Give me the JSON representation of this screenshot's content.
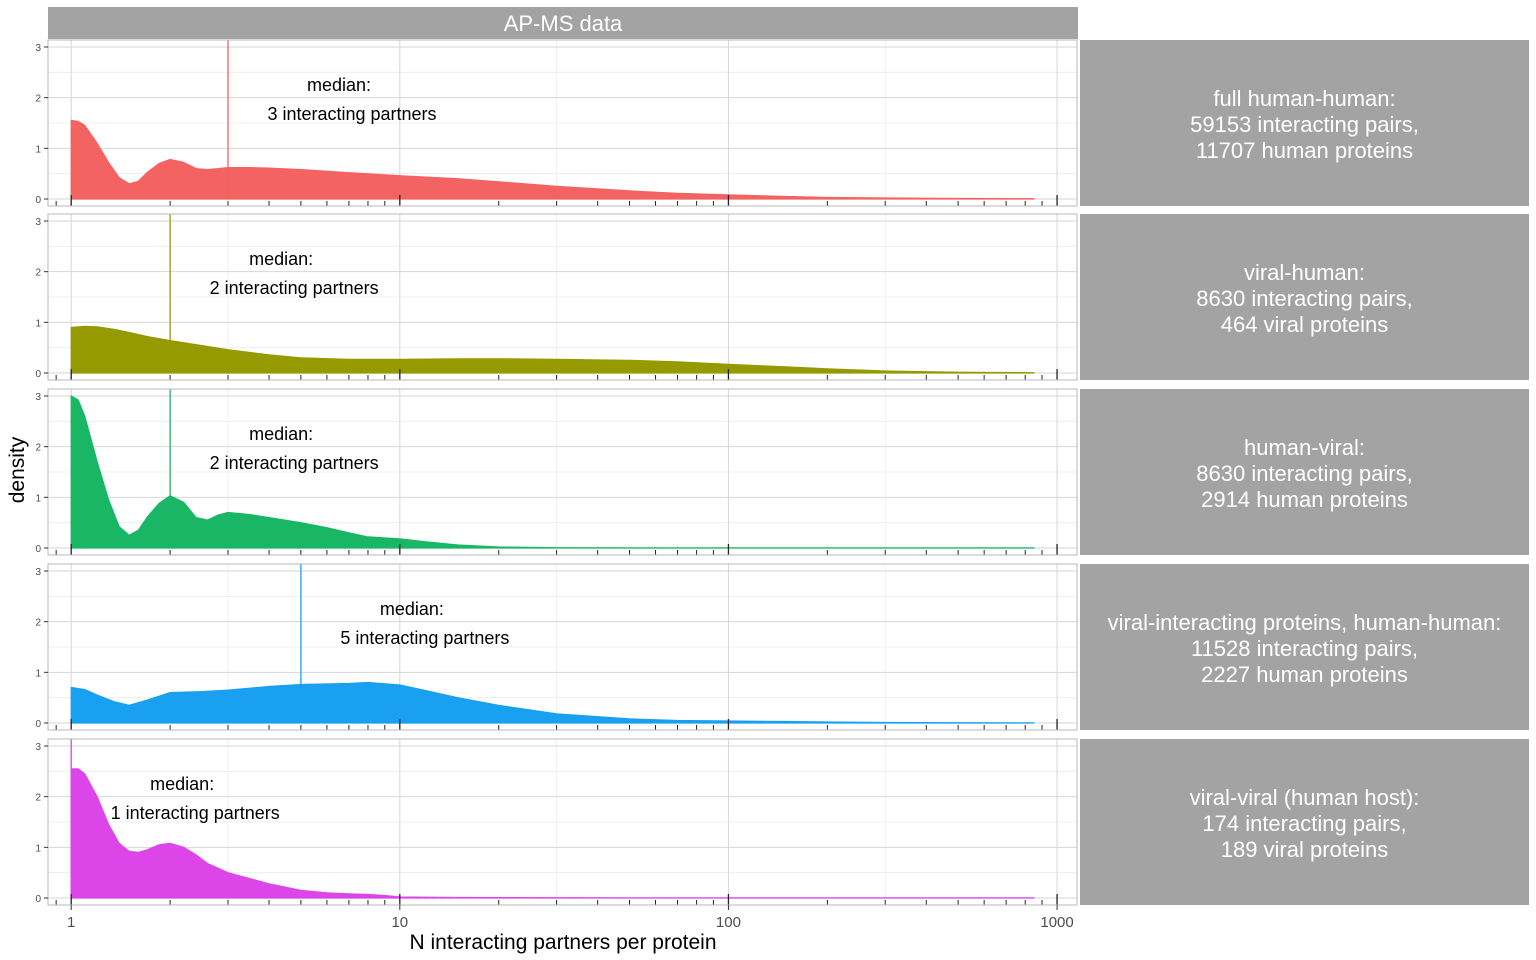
{
  "chart_data": {
    "type": "area",
    "title": "AP-MS data",
    "xlabel": "N interacting partners per protein",
    "ylabel": "density",
    "x_scale": "log10",
    "xlim": [
      0.85,
      1150
    ],
    "ylim": [
      0,
      3.1
    ],
    "x_ticks": [
      1,
      10,
      100,
      1000
    ],
    "x_tick_labels": [
      "1",
      "10",
      "100",
      "1000"
    ],
    "y_ticks": [
      0,
      1,
      2,
      3
    ],
    "y_tick_labels": [
      "0",
      "1",
      "2",
      "3"
    ],
    "grid": true,
    "legend": "none",
    "median_prefix": "median:",
    "panels": [
      {
        "strip_lines": [
          "full human-human:",
          "59153 interacting pairs,",
          "11707 human proteins"
        ],
        "color": "#F26361",
        "median": 3,
        "median_label": "3 interacting partners",
        "x": [
          1,
          1.05,
          1.1,
          1.2,
          1.3,
          1.4,
          1.5,
          1.6,
          1.7,
          1.85,
          2,
          2.2,
          2.4,
          2.6,
          2.8,
          3,
          3.5,
          4,
          5,
          7,
          10,
          15,
          20,
          30,
          50,
          70,
          100,
          150,
          200,
          300,
          500,
          850
        ],
        "y": [
          1.55,
          1.53,
          1.45,
          1.1,
          0.72,
          0.42,
          0.3,
          0.35,
          0.52,
          0.7,
          0.78,
          0.72,
          0.6,
          0.58,
          0.6,
          0.62,
          0.62,
          0.61,
          0.58,
          0.52,
          0.46,
          0.4,
          0.34,
          0.25,
          0.16,
          0.11,
          0.08,
          0.05,
          0.03,
          0.02,
          0.01,
          0.005
        ]
      },
      {
        "strip_lines": [
          "viral-human:",
          "8630 interacting pairs,",
          "464 viral proteins"
        ],
        "color": "#959A00",
        "median": 2,
        "median_label": "2 interacting partners",
        "x": [
          1,
          1.1,
          1.2,
          1.35,
          1.5,
          1.7,
          2,
          2.5,
          3,
          4,
          5,
          7,
          10,
          15,
          20,
          30,
          50,
          70,
          100,
          150,
          200,
          300,
          500,
          850
        ],
        "y": [
          0.9,
          0.92,
          0.91,
          0.86,
          0.8,
          0.72,
          0.64,
          0.54,
          0.46,
          0.36,
          0.3,
          0.27,
          0.27,
          0.28,
          0.28,
          0.27,
          0.25,
          0.22,
          0.17,
          0.12,
          0.08,
          0.04,
          0.015,
          0.005
        ]
      },
      {
        "strip_lines": [
          "human-viral:",
          "8630 interacting pairs,",
          "2914 human proteins"
        ],
        "color": "#18B665",
        "median": 2,
        "median_label": "2 interacting partners",
        "x": [
          1,
          1.05,
          1.1,
          1.2,
          1.3,
          1.4,
          1.5,
          1.6,
          1.7,
          1.85,
          2,
          2.2,
          2.4,
          2.6,
          2.8,
          3,
          3.5,
          4,
          5,
          6,
          7,
          8,
          10,
          12,
          15,
          20,
          30,
          50,
          100,
          850
        ],
        "y": [
          3.0,
          2.92,
          2.6,
          1.7,
          0.95,
          0.42,
          0.25,
          0.35,
          0.6,
          0.88,
          1.03,
          0.9,
          0.6,
          0.55,
          0.65,
          0.7,
          0.66,
          0.6,
          0.5,
          0.4,
          0.3,
          0.22,
          0.18,
          0.12,
          0.06,
          0.02,
          0.005,
          0.002,
          0.001,
          0.001
        ]
      },
      {
        "strip_lines": [
          "viral-interacting proteins, human-human:",
          "11528 interacting pairs,",
          "2227 human proteins"
        ],
        "color": "#19A0F0",
        "median": 5,
        "median_label": "5 interacting partners",
        "x": [
          1,
          1.1,
          1.2,
          1.35,
          1.5,
          1.7,
          2,
          2.5,
          3,
          4,
          5,
          7,
          8,
          10,
          12,
          15,
          20,
          30,
          50,
          70,
          100,
          150,
          200,
          300,
          500,
          850
        ],
        "y": [
          0.7,
          0.66,
          0.55,
          0.42,
          0.35,
          0.45,
          0.6,
          0.62,
          0.65,
          0.72,
          0.76,
          0.78,
          0.8,
          0.75,
          0.64,
          0.5,
          0.35,
          0.18,
          0.08,
          0.05,
          0.04,
          0.03,
          0.02,
          0.01,
          0.005,
          0.002
        ]
      },
      {
        "strip_lines": [
          "viral-viral (human host):",
          "174 interacting pairs,",
          "189 viral proteins"
        ],
        "color": "#DC45E8",
        "median": 1,
        "median_label": "1 interacting partners",
        "x": [
          1,
          1.05,
          1.1,
          1.2,
          1.3,
          1.4,
          1.5,
          1.6,
          1.7,
          1.85,
          2,
          2.2,
          2.4,
          2.6,
          3,
          3.5,
          4,
          5,
          6,
          7,
          8,
          9,
          10,
          15,
          30,
          100,
          850
        ],
        "y": [
          2.55,
          2.55,
          2.45,
          2.0,
          1.45,
          1.08,
          0.92,
          0.9,
          0.95,
          1.05,
          1.08,
          1.0,
          0.85,
          0.68,
          0.5,
          0.38,
          0.28,
          0.15,
          0.1,
          0.08,
          0.07,
          0.05,
          0.02,
          0.01,
          0.005,
          0.002,
          0.001
        ]
      }
    ]
  }
}
